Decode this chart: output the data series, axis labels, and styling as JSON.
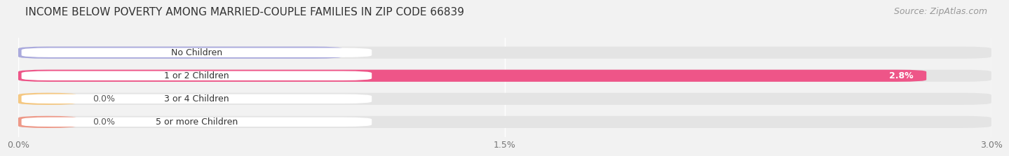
{
  "title": "INCOME BELOW POVERTY AMONG MARRIED-COUPLE FAMILIES IN ZIP CODE 66839",
  "source": "Source: ZipAtlas.com",
  "categories": [
    "No Children",
    "1 or 2 Children",
    "3 or 4 Children",
    "5 or more Children"
  ],
  "values": [
    1.0,
    2.8,
    0.0,
    0.0
  ],
  "bar_colors": [
    "#aaaadd",
    "#ee5588",
    "#f5c882",
    "#ee9988"
  ],
  "xlim": [
    0.0,
    3.0
  ],
  "xtick_labels": [
    "0.0%",
    "1.5%",
    "3.0%"
  ],
  "xtick_vals": [
    0.0,
    1.5,
    3.0
  ],
  "background_color": "#f2f2f2",
  "bar_bg_color": "#e4e4e4",
  "title_fontsize": 11,
  "source_fontsize": 9,
  "label_fontsize": 9,
  "value_fontsize": 9,
  "zero_stub": 0.18
}
